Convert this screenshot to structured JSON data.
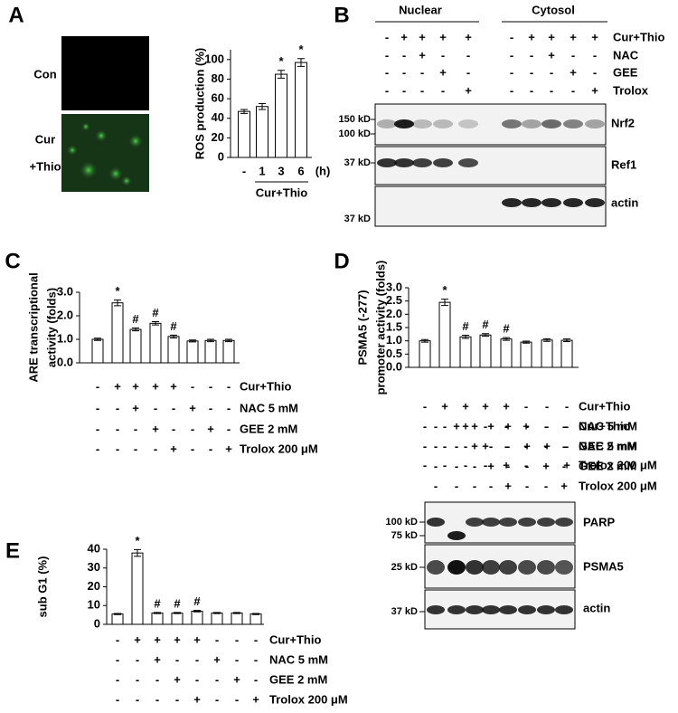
{
  "panel_labels": [
    "A",
    "B",
    "C",
    "D",
    "E"
  ],
  "image_labels": [
    [
      "Con"
    ],
    [
      "Cur",
      "+Thio"
    ]
  ],
  "chart_data": [
    {
      "type": "bar",
      "y_label": [
        "ROS production (%)"
      ],
      "categories": [
        "-",
        "1",
        "3",
        "6"
      ],
      "x_unit": "(h)",
      "x_group_label": "Cur+Thio",
      "values": [
        47,
        52,
        85,
        97
      ],
      "errors": [
        2,
        3,
        4,
        4
      ],
      "bar_annotations": [
        null,
        null,
        "*",
        "*"
      ],
      "color": "#ffffff",
      "ylim": [
        0,
        110
      ],
      "yticks": [
        0,
        20,
        40,
        60,
        80,
        100
      ]
    },
    {
      "type": "bar",
      "y_label": [
        "ARE transcriptional",
        "activity (folds)"
      ],
      "values": [
        1.0,
        2.55,
        1.42,
        1.68,
        1.12,
        0.93,
        0.95,
        0.95
      ],
      "errors": [
        0.05,
        0.12,
        0.06,
        0.07,
        0.06,
        0.04,
        0.05,
        0.05
      ],
      "bar_annotations": [
        null,
        "*",
        "#",
        "#",
        "#",
        null,
        null,
        null
      ],
      "color": "#ffffff",
      "ylim": [
        0,
        3
      ],
      "yticks": [
        {
          "value": 0,
          "label": "0.0"
        },
        {
          "value": 1,
          "label": "1.0"
        },
        {
          "value": 2,
          "label": "2.0"
        },
        {
          "value": 3,
          "label": "3.0"
        }
      ],
      "treatments": [
        {
          "name": "Cur+Thio",
          "signs": [
            "-",
            "+",
            "+",
            "+",
            "+",
            "-",
            "-",
            "-"
          ]
        },
        {
          "name": "NAC 5 mM",
          "signs": [
            "-",
            "-",
            "+",
            "-",
            "-",
            "+",
            "-",
            "-"
          ]
        },
        {
          "name": "GEE 2 mM",
          "signs": [
            "-",
            "-",
            "-",
            "+",
            "-",
            "-",
            "+",
            "-"
          ]
        },
        {
          "name": "Trolox 200 μM",
          "signs": [
            "-",
            "-",
            "-",
            "-",
            "+",
            "-",
            "-",
            "+"
          ]
        }
      ]
    },
    {
      "type": "bar",
      "y_label": [
        "PSMA5 (-277)",
        "promoter activity (folds)"
      ],
      "values": [
        1.0,
        2.45,
        1.15,
        1.22,
        1.07,
        0.95,
        1.03,
        1.02
      ],
      "errors": [
        0.05,
        0.12,
        0.06,
        0.05,
        0.05,
        0.04,
        0.05,
        0.05
      ],
      "bar_annotations": [
        null,
        "*",
        "#",
        "#",
        "#",
        null,
        null,
        null
      ],
      "color": "#ffffff",
      "ylim": [
        0,
        3
      ],
      "yticks": [
        {
          "value": 0,
          "label": "0.0"
        },
        {
          "value": 0.5,
          "label": "0.5"
        },
        {
          "value": 1,
          "label": "1.0"
        },
        {
          "value": 1.5,
          "label": "1.5"
        },
        {
          "value": 2,
          "label": "2.0"
        },
        {
          "value": 2.5,
          "label": "2.5"
        },
        {
          "value": 3,
          "label": "3.0"
        }
      ],
      "treatments": [
        {
          "name": "Cur+Thio",
          "signs": [
            "-",
            "+",
            "+",
            "+",
            "+",
            "-",
            "-",
            "-"
          ]
        },
        {
          "name": "NAC 5 mM",
          "signs": [
            "-",
            "-",
            "+",
            "-",
            "-",
            "+",
            "-",
            "-"
          ]
        },
        {
          "name": "GEE 2 mM",
          "signs": [
            "-",
            "-",
            "-",
            "+",
            "-",
            "-",
            "+",
            "-"
          ]
        },
        {
          "name": "Trolox 200 μM",
          "signs": [
            "-",
            "-",
            "-",
            "-",
            "+",
            "-",
            "-",
            "+"
          ]
        }
      ]
    },
    {
      "type": "bar",
      "y_label": [
        "sub G1 (%)"
      ],
      "values": [
        5.5,
        38,
        6,
        6,
        7,
        6,
        6,
        5.5
      ],
      "errors": [
        0.3,
        1.8,
        0.3,
        0.3,
        0.4,
        0.3,
        0.3,
        0.3
      ],
      "bar_annotations": [
        null,
        "*",
        "#",
        "#",
        "#",
        null,
        null,
        null
      ],
      "color": "#ffffff",
      "ylim": [
        0,
        40
      ],
      "yticks": [
        0,
        10,
        20,
        30,
        40
      ],
      "treatments": [
        {
          "name": "Cur+Thio",
          "signs": [
            "-",
            "+",
            "+",
            "+",
            "+",
            "-",
            "-",
            "-"
          ]
        },
        {
          "name": "NAC 5 mM",
          "signs": [
            "-",
            "-",
            "+",
            "-",
            "-",
            "+",
            "-",
            "-"
          ]
        },
        {
          "name": "GEE 2 mM",
          "signs": [
            "-",
            "-",
            "-",
            "+",
            "-",
            "-",
            "+",
            "-"
          ]
        },
        {
          "name": "Trolox 200 μM",
          "signs": [
            "-",
            "-",
            "-",
            "-",
            "+",
            "-",
            "-",
            "+"
          ]
        }
      ]
    }
  ],
  "blots": [
    {
      "headers": [
        "Nuclear",
        "Cytosol"
      ],
      "treatments": [
        {
          "name": "Cur+Thio",
          "signs": [
            "-",
            "+",
            "+",
            "+",
            "+",
            "-",
            "+",
            "+",
            "+",
            "+"
          ]
        },
        {
          "name": "NAC",
          "signs": [
            "-",
            "-",
            "+",
            "-",
            "-",
            "-",
            "-",
            "+",
            "-",
            "-"
          ]
        },
        {
          "name": "GEE",
          "signs": [
            "-",
            "-",
            "-",
            "+",
            "-",
            "-",
            "-",
            "-",
            "+",
            "-"
          ]
        },
        {
          "name": "Trolox",
          "signs": [
            "-",
            "-",
            "-",
            "-",
            "+",
            "-",
            "-",
            "-",
            "-",
            "+"
          ]
        }
      ],
      "markers": [
        "150 kD",
        "100 kD",
        "37 kD",
        "37 kD"
      ],
      "proteins": [
        "Nrf2",
        "Ref1",
        "actin"
      ]
    },
    {
      "treatments": [
        {
          "name": "Cur+Thio",
          "signs": [
            "-",
            "+",
            "+",
            "+",
            "+",
            "-",
            "-",
            "-"
          ]
        },
        {
          "name": "NAC 5 mM",
          "signs": [
            "-",
            "-",
            "+",
            "-",
            "-",
            "+",
            "-",
            "-"
          ]
        },
        {
          "name": "GEE 2 mM",
          "signs": [
            "-",
            "-",
            "-",
            "+",
            "-",
            "-",
            "+",
            "-"
          ]
        },
        {
          "name": "Trolox 200 μM",
          "signs": [
            "-",
            "-",
            "-",
            "-",
            "+",
            "-",
            "-",
            "+"
          ]
        }
      ],
      "markers": [
        "100 kD",
        "75 kD",
        "25 kD",
        "37 kD"
      ],
      "proteins": [
        "PARP",
        "PSMA5",
        "actin"
      ]
    }
  ]
}
